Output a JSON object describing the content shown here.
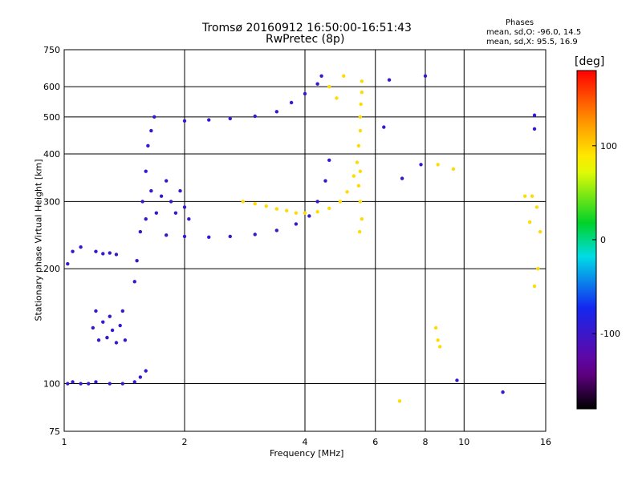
{
  "chart_data": {
    "type": "scatter",
    "title": "Tromsø 20160912 16:50:00-16:51:43",
    "subtitle": "RwPretec (8p)",
    "xlabel": "Frequency [MHz]",
    "ylabel": "Stationary phase Virtual Height [km]",
    "x_scale": "log",
    "y_scale": "log",
    "xlim": [
      1,
      16
    ],
    "ylim": [
      75,
      750
    ],
    "grid": true,
    "x_ticks": [
      "1",
      "2",
      "4",
      "6",
      "8",
      "10",
      "16"
    ],
    "y_ticks": [
      "75",
      "100",
      "200",
      "300",
      "400",
      "500",
      "600",
      "750"
    ],
    "stats_box": {
      "title": "Phases",
      "line1": "mean, sd,O: -96.0, 14.5",
      "line2": "mean, sd,X:  95.5, 16.9"
    },
    "colorbar": {
      "label": "[deg]",
      "range": [
        -180,
        180
      ],
      "ticks": [
        "100",
        "0",
        "-100"
      ],
      "colormap": "rainbow"
    },
    "series": [
      {
        "group": "O-mode traces",
        "phase": -96,
        "points": [
          [
            1.02,
            100
          ],
          [
            1.05,
            101
          ],
          [
            1.1,
            100
          ],
          [
            1.15,
            100
          ],
          [
            1.2,
            101
          ],
          [
            1.3,
            100
          ],
          [
            1.4,
            100
          ],
          [
            1.5,
            101
          ],
          [
            1.55,
            104
          ],
          [
            1.6,
            108
          ],
          [
            1.02,
            206
          ],
          [
            1.05,
            222
          ],
          [
            1.1,
            228
          ],
          [
            1.2,
            222
          ],
          [
            1.25,
            219
          ],
          [
            1.3,
            220
          ],
          [
            1.35,
            218
          ],
          [
            1.18,
            140
          ],
          [
            1.2,
            155
          ],
          [
            1.22,
            130
          ],
          [
            1.25,
            145
          ],
          [
            1.28,
            132
          ],
          [
            1.3,
            150
          ],
          [
            1.32,
            138
          ],
          [
            1.35,
            128
          ],
          [
            1.38,
            142
          ],
          [
            1.4,
            155
          ],
          [
            1.42,
            130
          ],
          [
            1.5,
            185
          ],
          [
            1.52,
            210
          ],
          [
            1.55,
            250
          ],
          [
            1.57,
            300
          ],
          [
            1.6,
            360
          ],
          [
            1.62,
            420
          ],
          [
            1.65,
            460
          ],
          [
            1.68,
            500
          ],
          [
            1.6,
            270
          ],
          [
            1.65,
            320
          ],
          [
            1.7,
            280
          ],
          [
            1.75,
            310
          ],
          [
            1.8,
            340
          ],
          [
            1.85,
            300
          ],
          [
            1.9,
            280
          ],
          [
            1.95,
            320
          ],
          [
            2.0,
            290
          ],
          [
            2.05,
            270
          ],
          [
            1.8,
            245
          ],
          [
            2.0,
            243
          ],
          [
            2.3,
            242
          ],
          [
            2.6,
            243
          ],
          [
            3.0,
            246
          ],
          [
            3.4,
            252
          ],
          [
            3.8,
            262
          ],
          [
            4.1,
            275
          ],
          [
            4.3,
            300
          ],
          [
            4.5,
            340
          ],
          [
            4.6,
            385
          ],
          [
            2.0,
            488
          ],
          [
            2.3,
            491
          ],
          [
            2.6,
            495
          ],
          [
            3.0,
            502
          ],
          [
            3.4,
            516
          ],
          [
            3.7,
            545
          ],
          [
            4.0,
            575
          ],
          [
            4.3,
            610
          ],
          [
            4.4,
            640
          ],
          [
            6.5,
            625
          ],
          [
            6.3,
            470
          ],
          [
            8.0,
            640
          ],
          [
            7.0,
            345
          ],
          [
            7.8,
            375
          ],
          [
            15.0,
            505
          ],
          [
            15.0,
            465
          ],
          [
            12.5,
            95
          ],
          [
            9.6,
            102
          ]
        ]
      },
      {
        "group": "X-mode traces",
        "phase": 95,
        "points": [
          [
            2.8,
            300
          ],
          [
            3.0,
            296
          ],
          [
            3.2,
            292
          ],
          [
            3.4,
            287
          ],
          [
            3.6,
            284
          ],
          [
            3.8,
            280
          ],
          [
            4.0,
            280
          ],
          [
            4.3,
            282
          ],
          [
            4.6,
            288
          ],
          [
            4.9,
            300
          ],
          [
            5.1,
            318
          ],
          [
            5.3,
            350
          ],
          [
            5.4,
            380
          ],
          [
            5.45,
            420
          ],
          [
            5.5,
            460
          ],
          [
            5.5,
            500
          ],
          [
            5.52,
            540
          ],
          [
            5.55,
            580
          ],
          [
            5.55,
            620
          ],
          [
            5.45,
            330
          ],
          [
            5.5,
            360
          ],
          [
            5.5,
            300
          ],
          [
            5.55,
            270
          ],
          [
            5.48,
            250
          ],
          [
            4.6,
            600
          ],
          [
            5.0,
            640
          ],
          [
            4.8,
            560
          ],
          [
            8.6,
            375
          ],
          [
            9.4,
            365
          ],
          [
            8.5,
            140
          ],
          [
            8.6,
            130
          ],
          [
            8.7,
            125
          ],
          [
            14.8,
            310
          ],
          [
            15.2,
            290
          ],
          [
            15.5,
            250
          ],
          [
            14.6,
            265
          ],
          [
            15.0,
            180
          ],
          [
            15.3,
            200
          ],
          [
            14.2,
            310
          ],
          [
            6.9,
            90
          ]
        ]
      }
    ]
  }
}
